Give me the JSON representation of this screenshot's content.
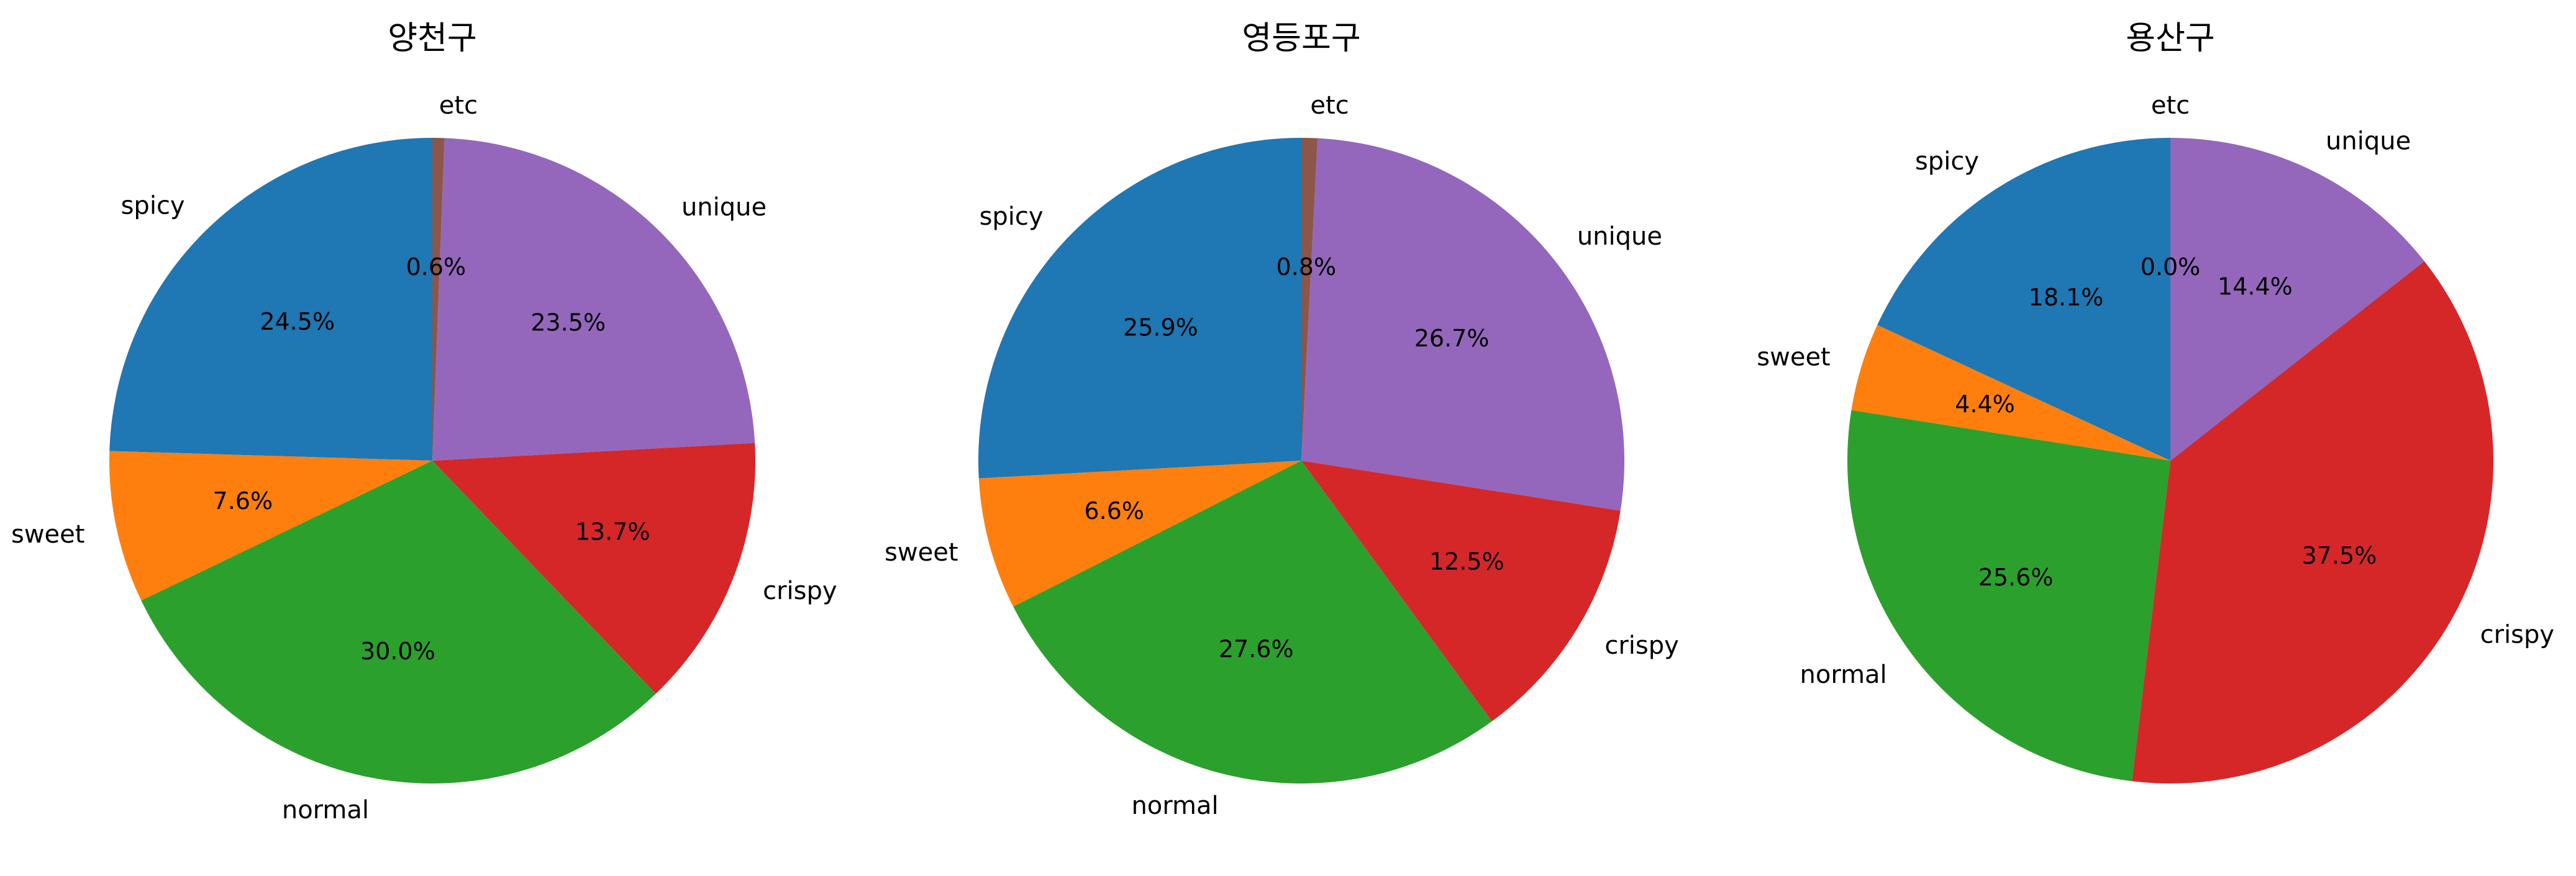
{
  "chart_data": [
    {
      "type": "pie",
      "title": "양천구",
      "categories": [
        "spicy",
        "sweet",
        "normal",
        "crispy",
        "unique",
        "etc"
      ],
      "values": [
        24.5,
        7.6,
        30.0,
        13.7,
        23.5,
        0.6
      ],
      "value_labels": [
        "24.5%",
        "7.6%",
        "30.0%",
        "13.7%",
        "23.5%",
        "0.6%"
      ],
      "colors": [
        "#1f77b4",
        "#ff7f0e",
        "#2ca02c",
        "#d62728",
        "#9467bd",
        "#8c564b"
      ],
      "start_angle_deg": 90,
      "direction": "counterclockwise"
    },
    {
      "type": "pie",
      "title": "영등포구",
      "categories": [
        "spicy",
        "sweet",
        "normal",
        "crispy",
        "unique",
        "etc"
      ],
      "values": [
        25.9,
        6.6,
        27.6,
        12.5,
        26.7,
        0.8
      ],
      "value_labels": [
        "25.9%",
        "6.6%",
        "27.6%",
        "12.5%",
        "26.7%",
        "0.8%"
      ],
      "colors": [
        "#1f77b4",
        "#ff7f0e",
        "#2ca02c",
        "#d62728",
        "#9467bd",
        "#8c564b"
      ],
      "start_angle_deg": 90,
      "direction": "counterclockwise"
    },
    {
      "type": "pie",
      "title": "용산구",
      "categories": [
        "spicy",
        "sweet",
        "normal",
        "crispy",
        "unique",
        "etc"
      ],
      "values": [
        18.1,
        4.4,
        25.6,
        37.5,
        14.4,
        0.0
      ],
      "value_labels": [
        "18.1%",
        "4.4%",
        "25.6%",
        "37.5%",
        "14.4%",
        "0.0%"
      ],
      "colors": [
        "#1f77b4",
        "#ff7f0e",
        "#2ca02c",
        "#d62728",
        "#9467bd",
        "#8c564b"
      ],
      "start_angle_deg": 90,
      "direction": "counterclockwise"
    }
  ]
}
